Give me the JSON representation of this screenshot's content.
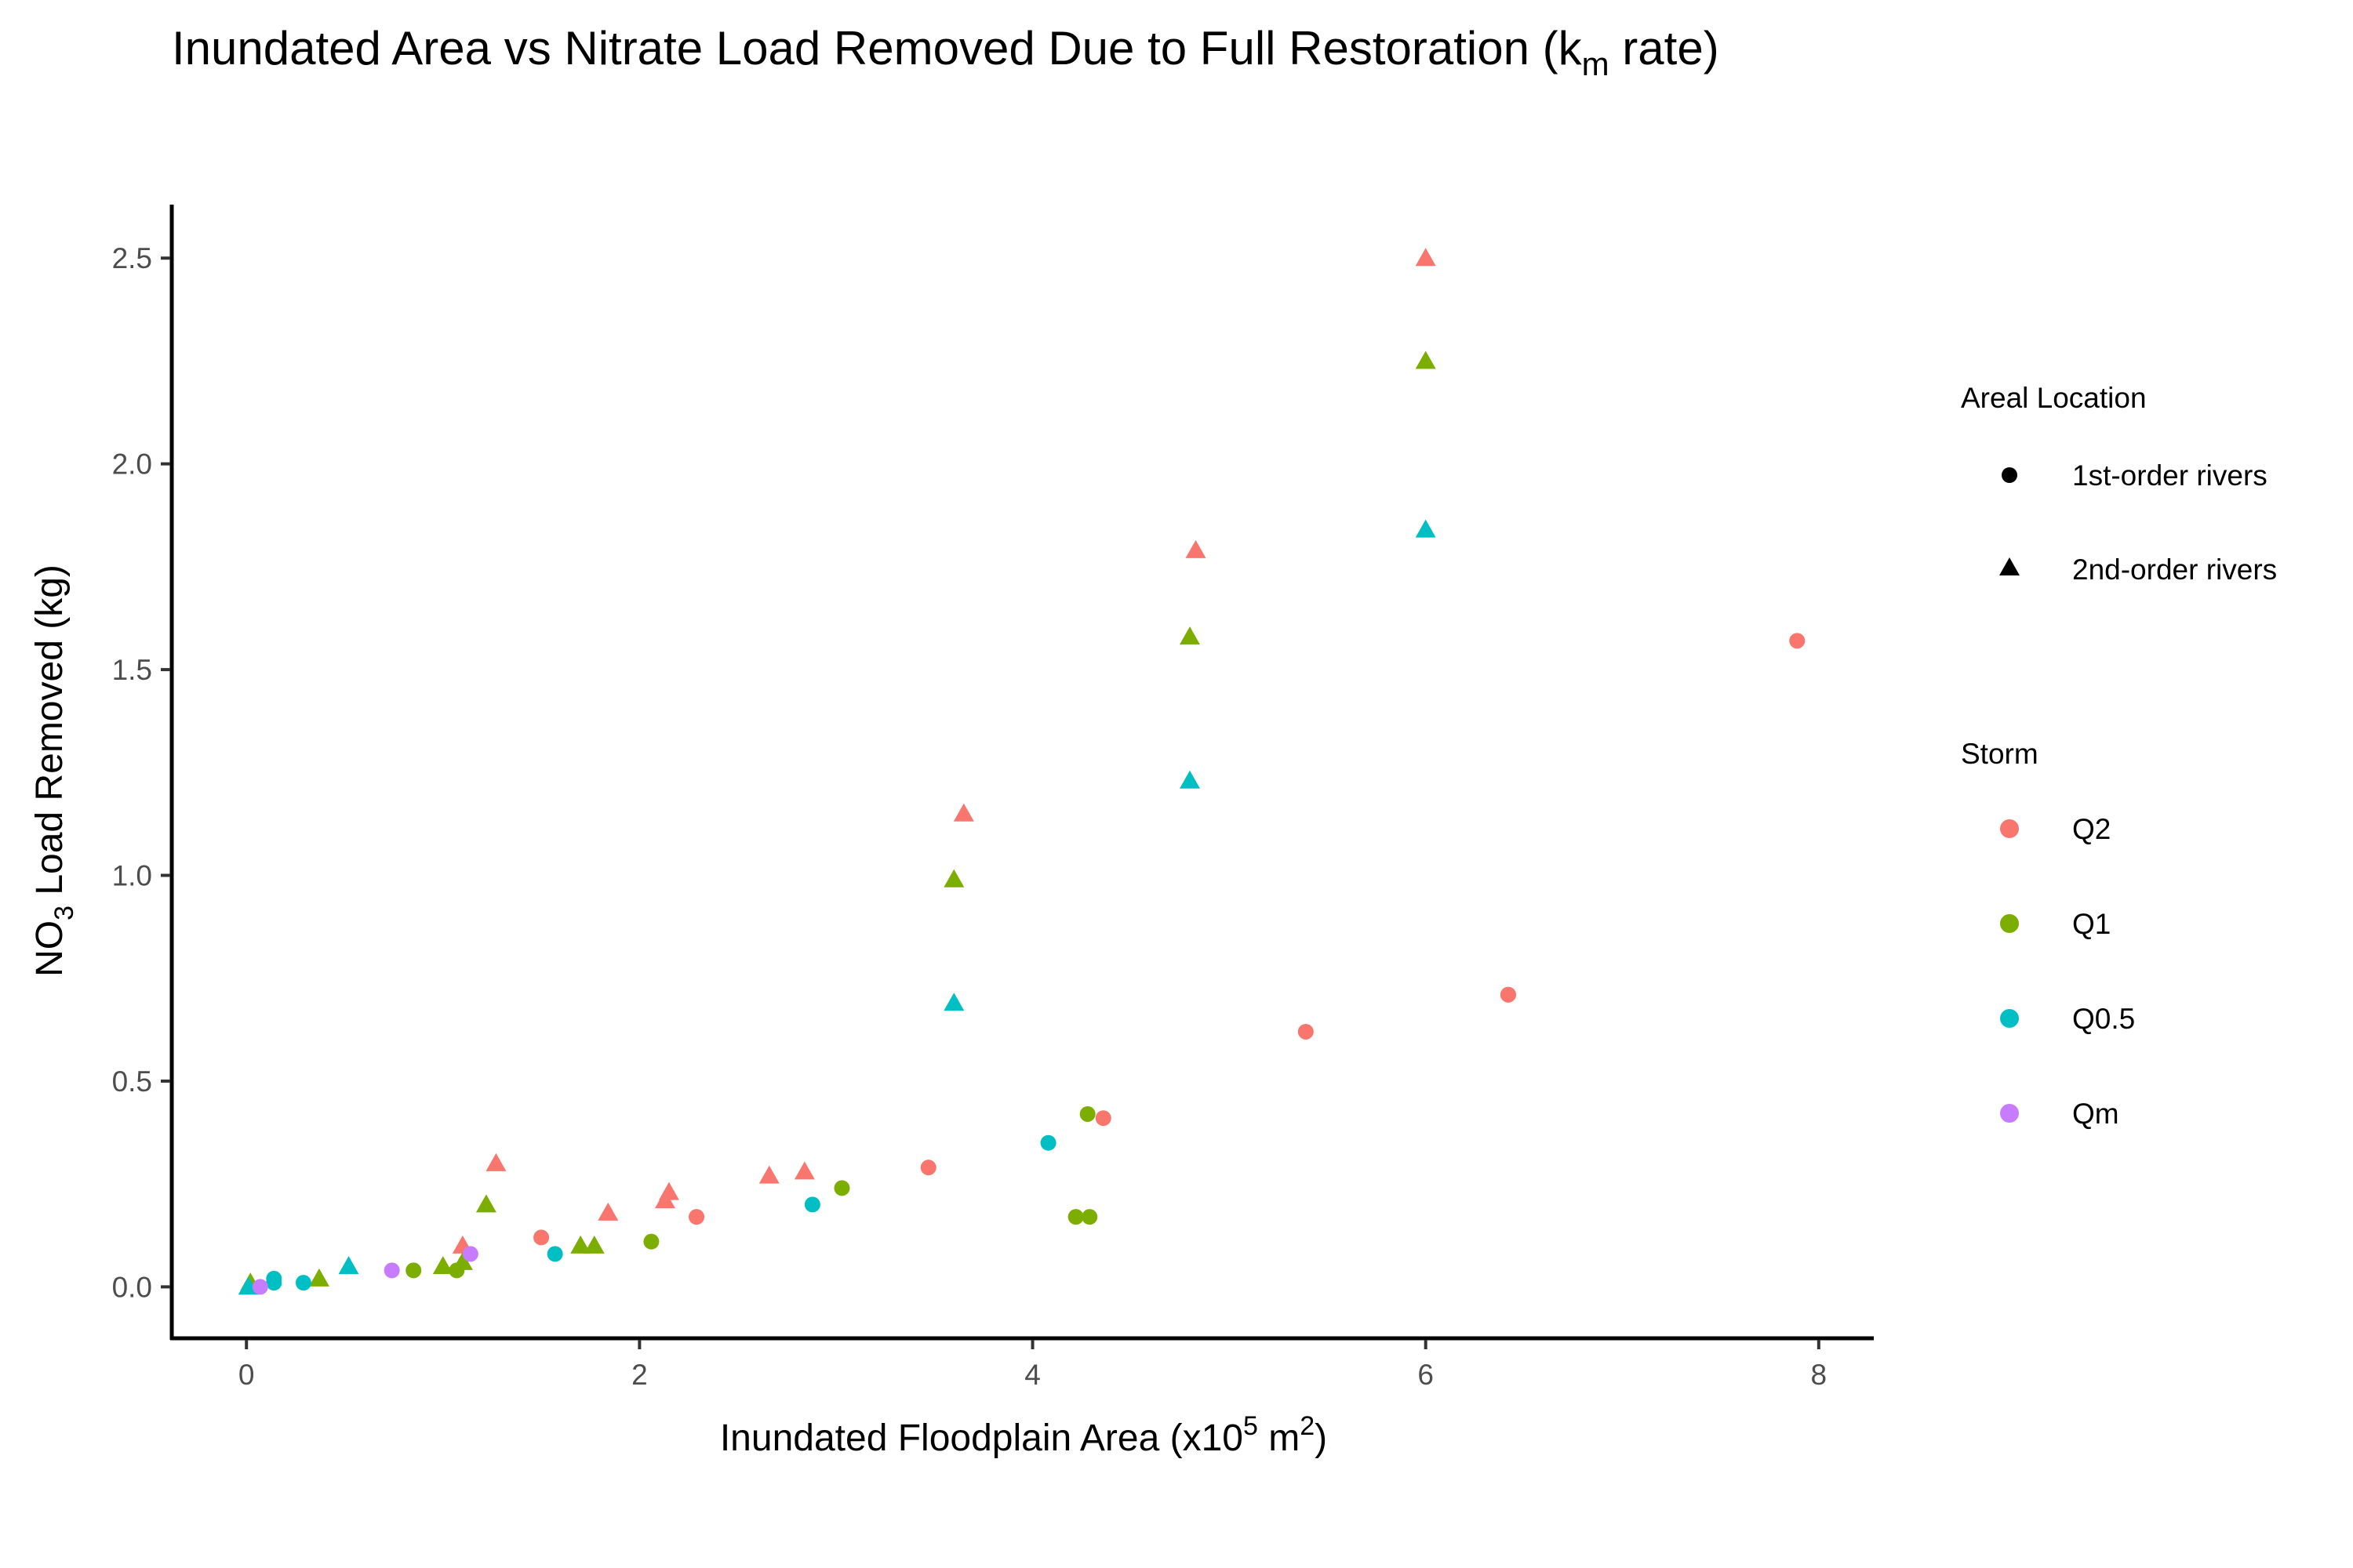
{
  "chart_data": {
    "type": "scatter",
    "title": {
      "main": "Inundated Area vs Nitrate Load Removed Due to Full Restoration (k",
      "sub": "m",
      "tail": " rate)"
    },
    "xlabel": {
      "main": "Inundated Floodplain Area (x10",
      "sup1": "5",
      "mid": " m",
      "sup2": "2",
      "tail": ")"
    },
    "ylabel": {
      "main": "NO",
      "sub": "3",
      "tail": " Load Removed (kg)"
    },
    "xlim": [
      -0.38,
      8.28
    ],
    "ylim": [
      -0.125,
      2.63
    ],
    "x_ticks": [
      0,
      2,
      4,
      6,
      8
    ],
    "x_tick_labels": [
      "0",
      "2",
      "4",
      "6",
      "8"
    ],
    "y_ticks": [
      0,
      0.5,
      1.0,
      1.5,
      2.0,
      2.5
    ],
    "y_tick_labels": [
      "0.0",
      "0.5",
      "1.0",
      "1.5",
      "2.0",
      "2.5"
    ],
    "grid": false,
    "legend_position": "right",
    "legend": {
      "shape_title": "Areal Location",
      "shape_entries": [
        {
          "label": "1st-order rivers",
          "shape": "circle"
        },
        {
          "label": "2nd-order rivers",
          "shape": "triangle"
        }
      ],
      "color_title": "Storm",
      "color_entries": [
        {
          "label": "Q2",
          "color": "#F8766D"
        },
        {
          "label": "Q1",
          "color": "#7CAE00"
        },
        {
          "label": "Q0.5",
          "color": "#00BFC4"
        },
        {
          "label": "Qm",
          "color": "#C77CFF"
        }
      ]
    },
    "series": [
      {
        "storm": "Q2",
        "color": "#F8766D",
        "shape": "triangle",
        "points": [
          [
            6.0,
            2.5
          ],
          [
            4.83,
            1.79
          ],
          [
            3.65,
            1.15
          ],
          [
            1.27,
            0.3
          ],
          [
            2.15,
            0.23
          ],
          [
            2.13,
            0.21
          ],
          [
            1.84,
            0.18
          ],
          [
            2.66,
            0.27
          ],
          [
            2.84,
            0.28
          ],
          [
            1.1,
            0.1
          ]
        ]
      },
      {
        "storm": "Q2",
        "color": "#F8766D",
        "shape": "circle",
        "points": [
          [
            7.89,
            1.57
          ],
          [
            6.42,
            0.71
          ],
          [
            6.42,
            0.71
          ],
          [
            5.39,
            0.62
          ],
          [
            4.36,
            0.41
          ],
          [
            3.47,
            0.29
          ],
          [
            2.29,
            0.17
          ],
          [
            1.5,
            0.12
          ]
        ]
      },
      {
        "storm": "Q1",
        "color": "#7CAE00",
        "shape": "triangle",
        "points": [
          [
            6.0,
            2.25
          ],
          [
            4.8,
            1.58
          ],
          [
            3.6,
            0.99
          ],
          [
            1.22,
            0.2
          ],
          [
            1.7,
            0.1
          ],
          [
            1.77,
            0.1
          ],
          [
            1.0,
            0.05
          ],
          [
            1.1,
            0.06
          ],
          [
            0.37,
            0.02
          ],
          [
            0.02,
            0.01
          ]
        ]
      },
      {
        "storm": "Q1",
        "color": "#7CAE00",
        "shape": "circle",
        "points": [
          [
            4.28,
            0.42
          ],
          [
            4.22,
            0.17
          ],
          [
            4.29,
            0.17
          ],
          [
            3.03,
            0.24
          ],
          [
            2.06,
            0.11
          ],
          [
            0.85,
            0.04
          ],
          [
            1.07,
            0.04
          ]
        ]
      },
      {
        "storm": "Q0.5",
        "color": "#00BFC4",
        "shape": "triangle",
        "points": [
          [
            6.0,
            1.84
          ],
          [
            4.8,
            1.23
          ],
          [
            3.6,
            0.69
          ],
          [
            0.52,
            0.05
          ],
          [
            0.01,
            0.0
          ]
        ]
      },
      {
        "storm": "Q0.5",
        "color": "#00BFC4",
        "shape": "circle",
        "points": [
          [
            4.08,
            0.35
          ],
          [
            2.88,
            0.2
          ],
          [
            1.57,
            0.08
          ],
          [
            0.29,
            0.01
          ],
          [
            0.14,
            0.02
          ],
          [
            0.14,
            0.01
          ]
        ]
      },
      {
        "storm": "Qm",
        "color": "#C77CFF",
        "shape": "circle",
        "points": [
          [
            0.74,
            0.04
          ],
          [
            1.14,
            0.08
          ],
          [
            0.07,
            0.0
          ]
        ]
      }
    ]
  }
}
